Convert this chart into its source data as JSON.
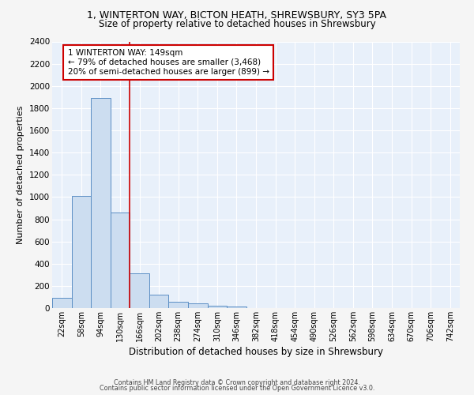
{
  "title_line1": "1, WINTERTON WAY, BICTON HEATH, SHREWSBURY, SY3 5PA",
  "title_line2": "Size of property relative to detached houses in Shrewsbury",
  "xlabel": "Distribution of detached houses by size in Shrewsbury",
  "ylabel": "Number of detached properties",
  "bin_labels": [
    "22sqm",
    "58sqm",
    "94sqm",
    "130sqm",
    "166sqm",
    "202sqm",
    "238sqm",
    "274sqm",
    "310sqm",
    "346sqm",
    "382sqm",
    "418sqm",
    "454sqm",
    "490sqm",
    "526sqm",
    "562sqm",
    "598sqm",
    "634sqm",
    "670sqm",
    "706sqm",
    "742sqm"
  ],
  "bar_values": [
    90,
    1010,
    1890,
    860,
    310,
    120,
    55,
    45,
    20,
    15,
    0,
    0,
    0,
    0,
    0,
    0,
    0,
    0,
    0,
    0,
    0
  ],
  "bar_color": "#ccddf0",
  "bar_edge_color": "#5b8ec4",
  "background_color": "#e8f0fa",
  "grid_color": "#ffffff",
  "vline_color": "#cc0000",
  "annotation_text": "1 WINTERTON WAY: 149sqm\n← 79% of detached houses are smaller (3,468)\n20% of semi-detached houses are larger (899) →",
  "annotation_box_color": "#ffffff",
  "annotation_box_edge": "#cc0000",
  "ylim": [
    0,
    2400
  ],
  "yticks": [
    0,
    200,
    400,
    600,
    800,
    1000,
    1200,
    1400,
    1600,
    1800,
    2000,
    2200,
    2400
  ],
  "footer_line1": "Contains HM Land Registry data © Crown copyright and database right 2024.",
  "footer_line2": "Contains public sector information licensed under the Open Government Licence v3.0."
}
